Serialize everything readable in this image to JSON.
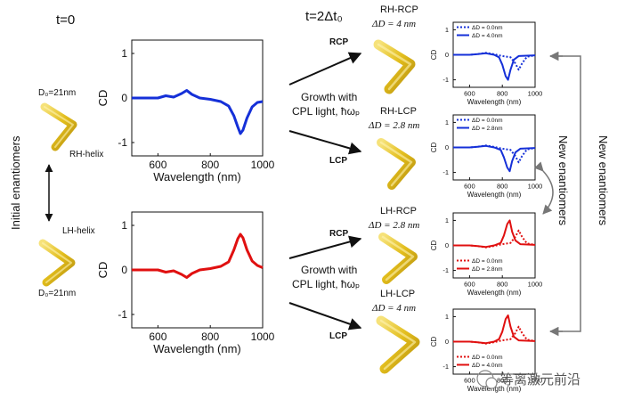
{
  "left": {
    "time_label": "t=0",
    "side_label": "Initial enantiomers",
    "rh": {
      "size": "D₀=21nm",
      "name": "RH-helix"
    },
    "lh": {
      "size": "D₀=21nm",
      "name": "LH-helix"
    }
  },
  "right_side_label": "New enantiomers",
  "mid_side_label": "New enantiomers",
  "middle": {
    "time_label": "t=2Δt₀",
    "growth_top": {
      "line1": "Growth with",
      "line2": "CPL light, ħωₚ"
    },
    "growth_bottom": {
      "line1": "Growth with",
      "line2": "CPL light, ħωₚ"
    },
    "items": [
      {
        "light": "RCP",
        "title": "RH-RCP",
        "delta": "ΔD = 4 nm"
      },
      {
        "light": "LCP",
        "title": "RH-LCP",
        "delta": "ΔD = 2.8 nm"
      },
      {
        "light": "RCP",
        "title": "LH-RCP",
        "delta": "ΔD = 2.8 nm"
      },
      {
        "light": "LCP",
        "title": "LH-LCP",
        "delta": "ΔD = 4 nm"
      }
    ]
  },
  "watermark": "等离激元前沿",
  "colors": {
    "blue": "#1530d8",
    "red": "#e01010",
    "helix": "#e6c21e"
  },
  "chart_data": [
    {
      "id": "big-top",
      "type": "line",
      "color": "#1530d8",
      "xlabel": "Wavelength (nm)",
      "ylabel": "CD",
      "xlim": [
        500,
        1000
      ],
      "ylim": [
        -1.3,
        1.3
      ],
      "xticks": [
        600,
        800,
        1000
      ],
      "yticks": [
        -1,
        0,
        1
      ],
      "series": [
        {
          "x": [
            500,
            550,
            600,
            630,
            660,
            690,
            710,
            730,
            760,
            800,
            840,
            870,
            890,
            905,
            915,
            925,
            940,
            960,
            980,
            1000
          ],
          "y": [
            0,
            0,
            0,
            0.05,
            0.02,
            0.1,
            0.17,
            0.08,
            0.0,
            -0.03,
            -0.08,
            -0.18,
            -0.4,
            -0.65,
            -0.8,
            -0.72,
            -0.45,
            -0.2,
            -0.1,
            -0.08
          ]
        }
      ]
    },
    {
      "id": "big-bottom",
      "type": "line",
      "color": "#e01010",
      "xlabel": "Wavelength (nm)",
      "ylabel": "CD",
      "xlim": [
        500,
        1000
      ],
      "ylim": [
        -1.3,
        1.3
      ],
      "xticks": [
        600,
        800,
        1000
      ],
      "yticks": [
        -1,
        0,
        1
      ],
      "series": [
        {
          "x": [
            500,
            550,
            600,
            630,
            660,
            690,
            710,
            730,
            760,
            800,
            840,
            870,
            890,
            905,
            915,
            925,
            940,
            960,
            980,
            1000
          ],
          "y": [
            0,
            0,
            0,
            -0.05,
            -0.02,
            -0.1,
            -0.17,
            -0.08,
            0.0,
            0.03,
            0.08,
            0.18,
            0.45,
            0.7,
            0.8,
            0.72,
            0.45,
            0.2,
            0.1,
            0.05
          ]
        }
      ]
    },
    {
      "id": "small-1",
      "type": "line",
      "color": "#1530d8",
      "xlabel": "Wavelength (nm)",
      "ylabel": "CD",
      "xlim": [
        500,
        1000
      ],
      "ylim": [
        -1.3,
        1.3
      ],
      "xticks": [
        600,
        800,
        1000
      ],
      "yticks": [
        -1,
        0,
        1
      ],
      "series": [
        {
          "name": "ΔD = 0.0nm",
          "style": "dotted",
          "x": [
            500,
            600,
            650,
            700,
            750,
            800,
            850,
            880,
            900,
            920,
            950,
            1000
          ],
          "y": [
            0,
            0,
            0.03,
            0.08,
            0.02,
            -0.05,
            -0.1,
            -0.35,
            -0.6,
            -0.35,
            -0.08,
            -0.02
          ]
        },
        {
          "name": "ΔD = 4.0nm",
          "style": "solid",
          "x": [
            500,
            600,
            650,
            700,
            750,
            780,
            800,
            820,
            835,
            850,
            870,
            900,
            1000
          ],
          "y": [
            0,
            0,
            0.03,
            0.06,
            0.0,
            -0.1,
            -0.4,
            -0.85,
            -1.0,
            -0.6,
            -0.2,
            -0.05,
            -0.02
          ]
        }
      ]
    },
    {
      "id": "small-2",
      "type": "line",
      "color": "#1530d8",
      "xlabel": "Wavelength (nm)",
      "ylabel": "CD",
      "xlim": [
        500,
        1000
      ],
      "ylim": [
        -1.3,
        1.3
      ],
      "xticks": [
        600,
        800,
        1000
      ],
      "yticks": [
        -1,
        0,
        1
      ],
      "series": [
        {
          "name": "ΔD = 0.0nm",
          "style": "dotted",
          "x": [
            500,
            600,
            650,
            700,
            750,
            800,
            850,
            880,
            900,
            920,
            950,
            1000
          ],
          "y": [
            0,
            0,
            0.03,
            0.08,
            0.02,
            -0.05,
            -0.1,
            -0.35,
            -0.6,
            -0.35,
            -0.08,
            -0.02
          ]
        },
        {
          "name": "ΔD = 2.8nm",
          "style": "solid",
          "x": [
            500,
            600,
            650,
            700,
            750,
            790,
            810,
            830,
            845,
            860,
            880,
            910,
            1000
          ],
          "y": [
            0,
            0,
            0.03,
            0.06,
            0.0,
            -0.1,
            -0.4,
            -0.8,
            -0.95,
            -0.55,
            -0.2,
            -0.05,
            -0.02
          ]
        }
      ]
    },
    {
      "id": "small-3",
      "type": "line",
      "color": "#e01010",
      "xlabel": "Wavelength (nm)",
      "ylabel": "CD",
      "xlim": [
        500,
        1000
      ],
      "ylim": [
        -1.3,
        1.3
      ],
      "xticks": [
        600,
        800,
        1000
      ],
      "yticks": [
        -1,
        0,
        1
      ],
      "series": [
        {
          "name": "ΔD = 0.0nm",
          "style": "dotted",
          "x": [
            500,
            600,
            650,
            700,
            750,
            800,
            850,
            880,
            900,
            920,
            950,
            1000
          ],
          "y": [
            0,
            0,
            -0.03,
            -0.08,
            -0.02,
            0.05,
            0.1,
            0.35,
            0.6,
            0.35,
            0.08,
            0.02
          ]
        },
        {
          "name": "ΔD = 2.8nm",
          "style": "solid",
          "x": [
            500,
            600,
            650,
            700,
            750,
            790,
            810,
            830,
            845,
            860,
            880,
            910,
            1000
          ],
          "y": [
            0,
            0,
            -0.03,
            -0.06,
            0.0,
            0.1,
            0.4,
            0.85,
            1.0,
            0.55,
            0.2,
            0.05,
            0.02
          ]
        }
      ]
    },
    {
      "id": "small-4",
      "type": "line",
      "color": "#e01010",
      "xlabel": "Wavelength (nm)",
      "ylabel": "CD",
      "xlim": [
        500,
        1000
      ],
      "ylim": [
        -1.3,
        1.3
      ],
      "xticks": [
        600,
        800,
        1000
      ],
      "yticks": [
        -1,
        0,
        1
      ],
      "series": [
        {
          "name": "ΔD = 0.0nm",
          "style": "dotted",
          "x": [
            500,
            600,
            650,
            700,
            750,
            800,
            850,
            880,
            900,
            920,
            950,
            1000
          ],
          "y": [
            0,
            0,
            -0.03,
            -0.08,
            -0.02,
            0.05,
            0.1,
            0.35,
            0.6,
            0.35,
            0.08,
            0.02
          ]
        },
        {
          "name": "ΔD = 4.0nm",
          "style": "solid",
          "x": [
            500,
            600,
            650,
            700,
            750,
            780,
            800,
            820,
            835,
            850,
            870,
            900,
            1000
          ],
          "y": [
            0,
            0,
            -0.03,
            -0.06,
            0.0,
            0.1,
            0.4,
            0.9,
            1.05,
            0.6,
            0.2,
            0.05,
            0.02
          ]
        }
      ]
    }
  ]
}
